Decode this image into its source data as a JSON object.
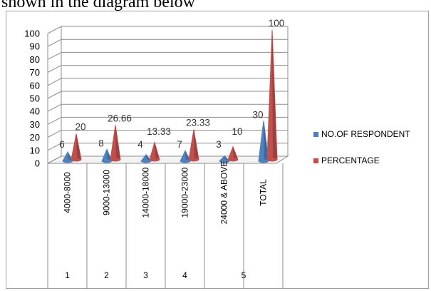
{
  "caption": "shown in the diagram below",
  "chart_data": {
    "type": "bar",
    "style": "3d-cone",
    "categories": [
      "4000-8000",
      "9000-13000",
      "14000-18000",
      "19000-23000",
      "24000 & ABOVE",
      "TOTAL"
    ],
    "group_labels": [
      "1",
      "2",
      "3",
      "4",
      "5"
    ],
    "series": [
      {
        "name": "NO.OF RESPONDENT",
        "values": [
          6,
          8,
          4,
          7,
          3,
          30
        ],
        "labels": [
          "6",
          "8",
          "4",
          "7",
          "3",
          "30"
        ],
        "color": "#4f81bd"
      },
      {
        "name": "PERCENTAGE",
        "values": [
          20,
          26.66,
          13.33,
          23.33,
          10,
          100
        ],
        "labels": [
          "20",
          "26.66",
          "13.33",
          "23.33",
          "10",
          "100"
        ],
        "color": "#c0504d"
      }
    ],
    "ylim": [
      0,
      100
    ],
    "yticks": [
      "0",
      "10",
      "20",
      "30",
      "40",
      "50",
      "60",
      "70",
      "80",
      "90",
      "100"
    ],
    "grid": true,
    "legend_position": "right"
  }
}
